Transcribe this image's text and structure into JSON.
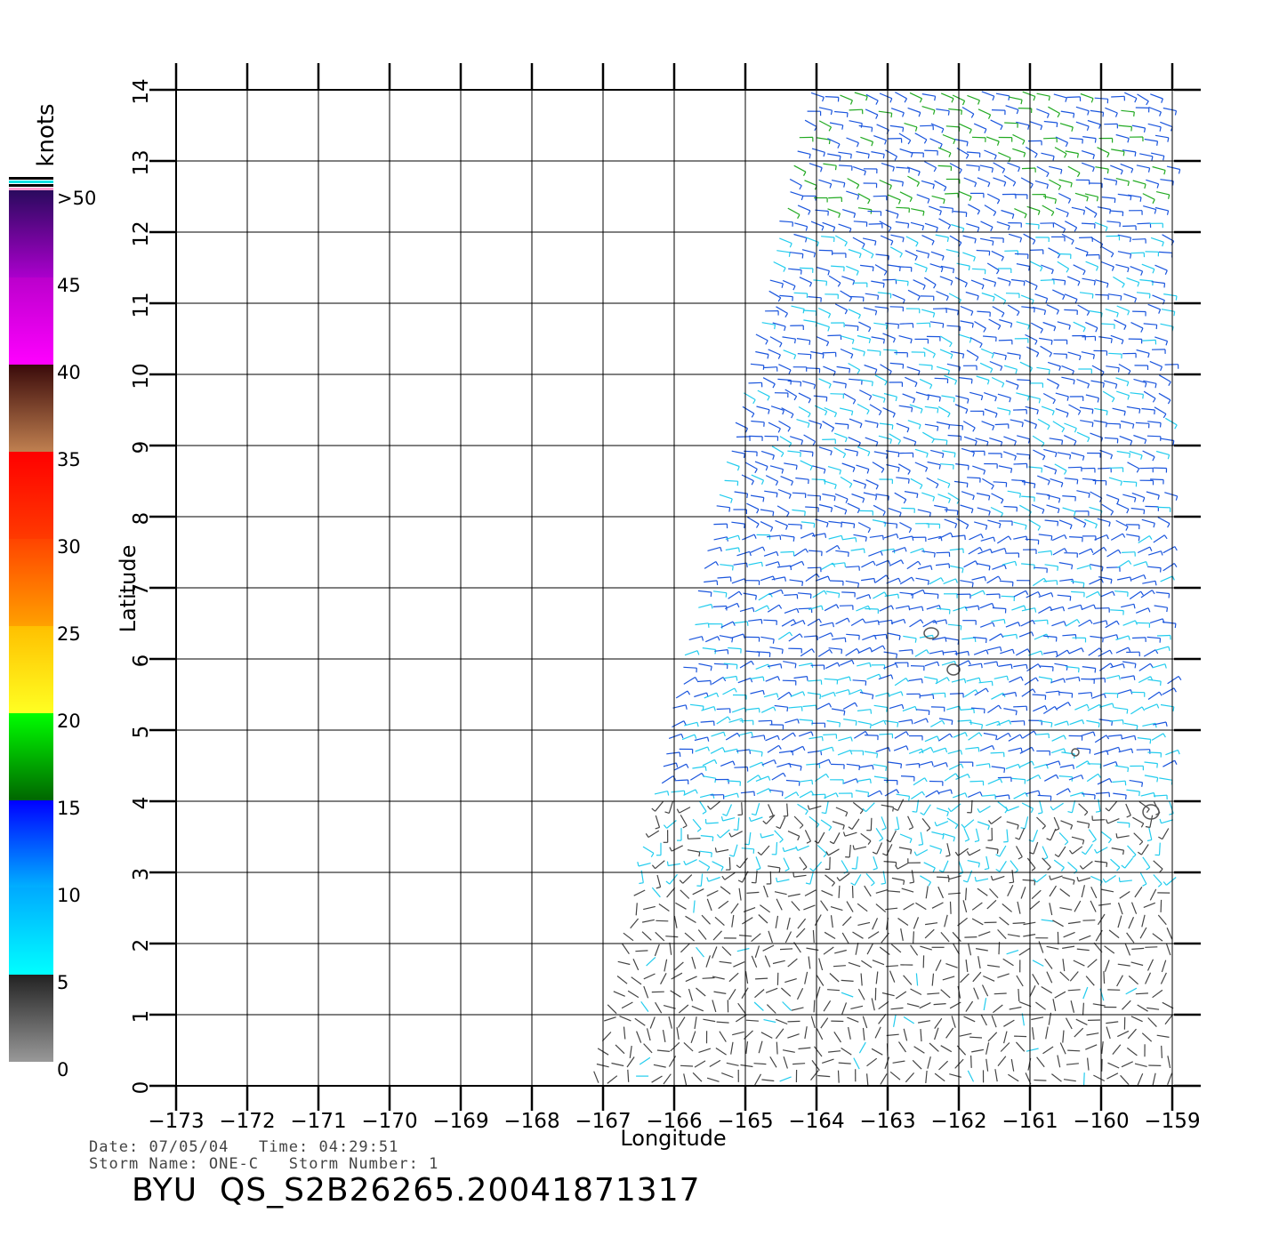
{
  "axes": {
    "x_label": "Longitude",
    "y_label": "Latitude",
    "x_ticks": [
      "−173",
      "−172",
      "−171",
      "−170",
      "−169",
      "−168",
      "−167",
      "−166",
      "−165",
      "−164",
      "−163",
      "−162",
      "−161",
      "−160",
      "−159"
    ],
    "y_ticks": [
      "0",
      "1",
      "2",
      "3",
      "4",
      "5",
      "6",
      "7",
      "8",
      "9",
      "10",
      "11",
      "12",
      "13",
      "14"
    ]
  },
  "colorbar": {
    "unit": "knots",
    "labels": [
      ">50",
      "45",
      "40",
      "35",
      "30",
      "25",
      "20",
      "15",
      "10",
      "5",
      "0"
    ]
  },
  "info": {
    "date_label": "Date:",
    "date": "07/05/04",
    "time_label": "Time:",
    "time": "04:29:51",
    "storm_name_label": "Storm Name:",
    "storm_name": "ONE-C",
    "storm_number_label": "Storm Number:",
    "storm_number": "1",
    "product": "BYU  QS_S2B26265.20041871317"
  },
  "chart_data": {
    "type": "wind-barb map",
    "x_range": [
      -173,
      -158.6
    ],
    "y_range": [
      0,
      14
    ],
    "speed_unit": "knots",
    "speed_color_classes": [
      {
        "range": [
          0,
          5
        ],
        "color": "#444444"
      },
      {
        "range": [
          5,
          10
        ],
        "color": "#22ccee"
      },
      {
        "range": [
          10,
          15
        ],
        "color": "#1a55dd"
      },
      {
        "range": [
          15,
          20
        ],
        "color": "#22aa22"
      },
      {
        "range": [
          20,
          25
        ],
        "color": "#ffdd00"
      }
    ]
  }
}
